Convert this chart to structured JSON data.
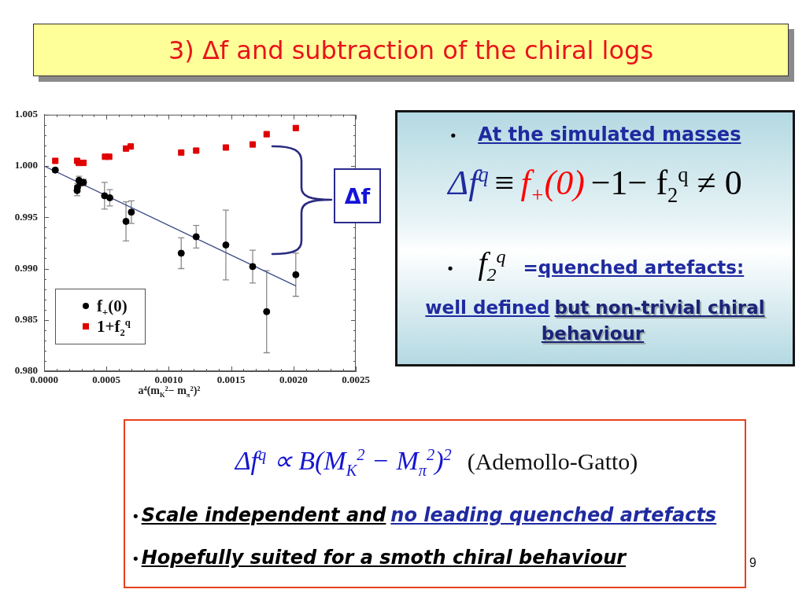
{
  "chart_data": {
    "type": "scatter",
    "title": "3) Δf and subtraction of the chiral logs",
    "xlabel": "a⁴(m$_{K}$²− m$_{π}$²)²",
    "xlim": [
      0,
      0.0025
    ],
    "ylim": [
      0.98,
      1.005
    ],
    "xticks": [
      {
        "value": 0,
        "label": "0.0000"
      },
      {
        "value": 0.0001,
        "label": null
      },
      {
        "value": 0.0002,
        "label": null
      },
      {
        "value": 0.0003,
        "label": null
      },
      {
        "value": 0.0004,
        "label": null
      },
      {
        "value": 0.0005,
        "label": "0.0005"
      },
      {
        "value": 0.0006,
        "label": null
      },
      {
        "value": 0.0007,
        "label": null
      },
      {
        "value": 0.0008,
        "label": null
      },
      {
        "value": 0.0009,
        "label": null
      },
      {
        "value": 0.001,
        "label": "0.0010"
      },
      {
        "value": 0.0011,
        "label": null
      },
      {
        "value": 0.0012,
        "label": null
      },
      {
        "value": 0.0013,
        "label": null
      },
      {
        "value": 0.0014,
        "label": null
      },
      {
        "value": 0.0015,
        "label": "0.0015"
      },
      {
        "value": 0.0016,
        "label": null
      },
      {
        "value": 0.0017,
        "label": null
      },
      {
        "value": 0.0018,
        "label": null
      },
      {
        "value": 0.0019,
        "label": null
      },
      {
        "value": 0.002,
        "label": "0.0020"
      },
      {
        "value": 0.0021,
        "label": null
      },
      {
        "value": 0.0022,
        "label": null
      },
      {
        "value": 0.0023,
        "label": null
      },
      {
        "value": 0.0024,
        "label": null
      },
      {
        "value": 0.0025,
        "label": "0.0025"
      }
    ],
    "yticks": [
      {
        "value": 0.98,
        "label": "0.980"
      },
      {
        "value": 0.981,
        "label": null
      },
      {
        "value": 0.982,
        "label": null
      },
      {
        "value": 0.983,
        "label": null
      },
      {
        "value": 0.984,
        "label": null
      },
      {
        "value": 0.985,
        "label": "0.985"
      },
      {
        "value": 0.986,
        "label": null
      },
      {
        "value": 0.987,
        "label": null
      },
      {
        "value": 0.988,
        "label": null
      },
      {
        "value": 0.989,
        "label": null
      },
      {
        "value": 0.99,
        "label": "0.990"
      },
      {
        "value": 0.991,
        "label": null
      },
      {
        "value": 0.992,
        "label": null
      },
      {
        "value": 0.993,
        "label": null
      },
      {
        "value": 0.994,
        "label": null
      },
      {
        "value": 0.995,
        "label": "0.995"
      },
      {
        "value": 0.996,
        "label": null
      },
      {
        "value": 0.997,
        "label": null
      },
      {
        "value": 0.998,
        "label": null
      },
      {
        "value": 0.999,
        "label": null
      },
      {
        "value": 1,
        "label": "1.000"
      },
      {
        "value": 1.001,
        "label": null
      },
      {
        "value": 1.002,
        "label": null
      },
      {
        "value": 1.003,
        "label": null
      },
      {
        "value": 1.004,
        "label": null
      },
      {
        "value": 1.005,
        "label": "1.005"
      }
    ],
    "legend": "bottom left",
    "series": [
      {
        "name": "f$_{+}$(0)",
        "type": "scatter",
        "marker": "circle",
        "color": "#000000",
        "x": [
          9e-05,
          0.000265,
          0.000268,
          0.00028,
          0.00029,
          0.000316,
          0.000485,
          0.000527,
          0.000657,
          0.0007,
          0.0011,
          0.00122,
          0.001458,
          0.001673,
          0.001785,
          0.002019
        ],
        "values": [
          0.9996,
          0.9976,
          0.9979,
          0.9986,
          0.99835,
          0.9984,
          0.9971,
          0.9969,
          0.9946,
          0.9955,
          0.9915,
          0.9931,
          0.9923,
          0.9902,
          0.9858,
          0.9894
        ],
        "errors": [
          0.0002,
          0.0005,
          0.0004,
          0.0004,
          0.0003,
          0.0003,
          0.0013,
          0.0008,
          0.0019,
          0.0011,
          0.0015,
          0.0011,
          0.0034,
          0.0016,
          0.004,
          0.0021
        ]
      },
      {
        "name": "1+f$_{2}$$^{q}$",
        "type": "scatter",
        "marker": "square",
        "color": "#e00000",
        "x": [
          9e-05,
          0.000265,
          0.000278,
          0.000316,
          0.000489,
          0.000522,
          0.000657,
          0.000695,
          0.0011,
          0.00122,
          0.001458,
          0.001673,
          0.001785,
          0.002019
        ],
        "values": [
          1.0005,
          1.0005,
          1.0003,
          1.0003,
          1.0009,
          1.0009,
          1.0017,
          1.0019,
          1.0013,
          1.0015,
          1.0018,
          1.0021,
          1.0031,
          1.0037
        ]
      },
      {
        "type": "line",
        "marker": "none",
        "color": "#3d4b86",
        "x": [
          0,
          0.00202
        ],
        "values": [
          1.0,
          0.9883
        ]
      }
    ],
    "annotations": [
      "Δf",
      "•",
      "At the simulated masses",
      "Δf$^{q}$",
      "≡",
      "f$_{+}$(0)",
      "−1− f$_{2}$$^{q}$ ≠ 0",
      "•",
      "f$_{2}$$^{q}$",
      "=",
      "quenched artefacts:",
      "well defined",
      "but non-trivial chiral behaviour",
      "Δf$^{q}$ ∝ B(M$_{K}$$^{2}$ − M$_{π}$$^{2}$)$^{2}$",
      "(Ademollo-Gatto)",
      "•",
      "Scale independent and",
      "no leading quenched artefacts",
      "•",
      "Hopefully suited for a smoth chiral behaviour",
      "9"
    ]
  }
}
